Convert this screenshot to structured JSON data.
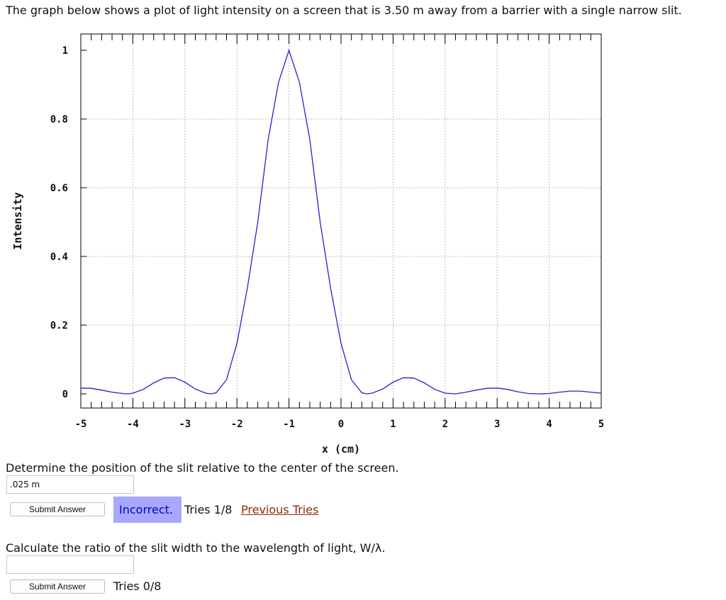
{
  "intro_text": "The graph below shows a plot of light intensity on a screen that is 3.50 m away from a barrier with a single narrow slit.",
  "chart_data": {
    "type": "line",
    "title": "",
    "xlabel": "x (cm)",
    "ylabel": "Intensity",
    "xlim": [
      -5,
      5
    ],
    "ylim": [
      0,
      1
    ],
    "x_ticks": [
      -5,
      -4,
      -3,
      -2,
      -1,
      0,
      1,
      2,
      3,
      4,
      5
    ],
    "x_tick_labels": [
      "-5",
      "-4",
      "-3",
      "-2",
      "-1",
      "0",
      "1",
      "2",
      "3",
      "4",
      "5"
    ],
    "y_ticks": [
      0,
      0.2,
      0.4,
      0.6,
      0.8,
      1
    ],
    "y_tick_labels": [
      "0",
      "0.2",
      "0.4",
      "0.6",
      "0.8",
      "1"
    ],
    "grid": true,
    "line_color": "#2222cc",
    "series": [
      {
        "x": [
          -5,
          -4.8,
          -4.6,
          -4.4,
          -4.2,
          -4.1,
          -4,
          -3.8,
          -3.6,
          -3.4,
          -3.2,
          -3,
          -2.8,
          -2.6,
          -2.5,
          -2.4,
          -2.2,
          -2,
          -1.8,
          -1.6,
          -1.4,
          -1.2,
          -1,
          -0.8,
          -0.6,
          -0.4,
          -0.2,
          0,
          0.2,
          0.4,
          0.5,
          0.6,
          0.8,
          1,
          1.2,
          1.4,
          1.6,
          1.8,
          2,
          2.2,
          2.4,
          2.6,
          2.8,
          3,
          3.2,
          3.4,
          3.6,
          3.8,
          4,
          4.2,
          4.4,
          4.6,
          4.8,
          5
        ],
        "y": [
          0.017,
          0.016,
          0.011,
          0.005,
          0.001,
          0,
          0.002,
          0.013,
          0.032,
          0.046,
          0.047,
          0.034,
          0.014,
          0.002,
          0,
          0.003,
          0.041,
          0.147,
          0.308,
          0.5,
          0.74,
          0.907,
          1,
          0.907,
          0.74,
          0.5,
          0.308,
          0.147,
          0.041,
          0.003,
          0,
          0.002,
          0.014,
          0.034,
          0.047,
          0.046,
          0.032,
          0.013,
          0.002,
          0,
          0.005,
          0.011,
          0.016,
          0.017,
          0.013,
          0.006,
          0.001,
          0,
          0.001,
          0.005,
          0.008,
          0.008,
          0.005,
          0.002
        ]
      }
    ]
  },
  "question1": {
    "prompt": "Determine the position of the slit relative to the center of the screen.",
    "answer_value": ".025 m",
    "submit_label": "Submit Answer",
    "status": "Incorrect.",
    "tries": "Tries 1/8",
    "previous_tries_link": "Previous Tries"
  },
  "question2": {
    "prompt": "Calculate the ratio of the slit width to the wavelength of light, W/λ.",
    "answer_value": "",
    "submit_label": "Submit Answer",
    "tries": "Tries 0/8"
  },
  "colors": {
    "status_badge_bg": "#a8a8ff",
    "status_text": "#0000cc",
    "link": "#8b2a0a"
  }
}
